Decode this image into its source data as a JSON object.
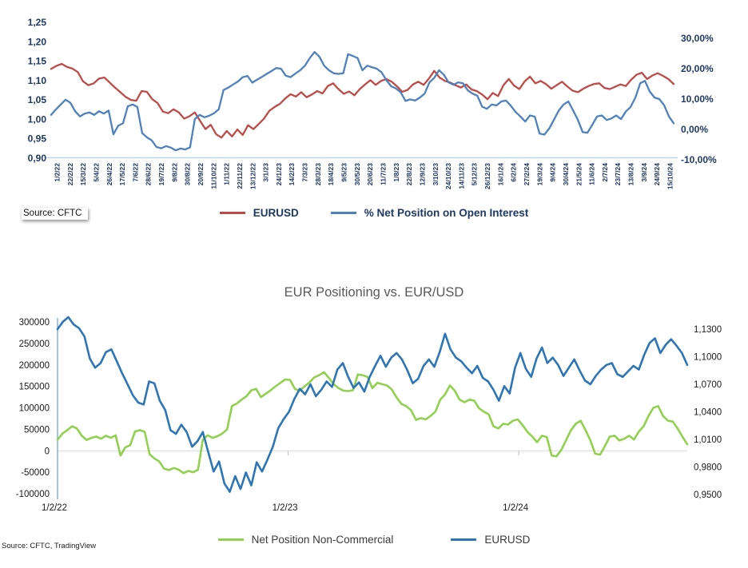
{
  "chart_data": [
    {
      "type": "line",
      "title": "",
      "source": "Source: CFTC",
      "left_axis": {
        "ticks": [
          "1,25",
          "1,20",
          "1,15",
          "1,10",
          "1,05",
          "1,00",
          "0,95",
          "0,90"
        ],
        "min": 0.9,
        "max": 1.25
      },
      "right_axis": {
        "ticks": [
          "30,00%",
          "20,00%",
          "10,00%",
          "0,00%",
          "-10,00%"
        ],
        "min": -10,
        "max": 30
      },
      "x_labels": [
        "1/2/22",
        "22/2/22",
        "15/3/22",
        "5/4/22",
        "26/4/22",
        "17/5/22",
        "7/6/22",
        "28/6/22",
        "19/7/22",
        "9/8/22",
        "30/8/22",
        "20/9/22",
        "11/10/22",
        "1/11/22",
        "22/11/22",
        "13/12/22",
        "3/1/23",
        "24/1/23",
        "14/2/23",
        "7/3/23",
        "28/3/23",
        "18/4/23",
        "9/5/23",
        "30/5/23",
        "20/6/23",
        "11/7/23",
        "1/8/23",
        "22/8/23",
        "12/9/23",
        "3/10/23",
        "24/10/23",
        "14/11/23",
        "5/12/23",
        "26/12/23",
        "16/1/24",
        "6/2/24",
        "27/2/24",
        "19/3/24",
        "9/4/24",
        "30/4/24",
        "21/5/24",
        "11/6/24",
        "2/7/24",
        "23/7/24",
        "13/8/24",
        "3/9/24",
        "24/9/24",
        "15/10/24"
      ],
      "series": [
        {
          "name": "EURUSD",
          "color": "#BE4B48",
          "axis": "left",
          "values": [
            1.13,
            1.138,
            1.143,
            1.135,
            1.131,
            1.122,
            1.098,
            1.088,
            1.093,
            1.105,
            1.108,
            1.095,
            1.082,
            1.07,
            1.058,
            1.05,
            1.048,
            1.073,
            1.071,
            1.052,
            1.042,
            1.02,
            1.016,
            1.026,
            1.018,
            1.002,
            1.008,
            1.018,
            0.996,
            0.975,
            0.986,
            0.962,
            0.953,
            0.97,
            0.956,
            0.974,
            0.96,
            0.985,
            0.975,
            0.988,
            1.002,
            1.022,
            1.032,
            1.04,
            1.054,
            1.065,
            1.059,
            1.07,
            1.057,
            1.064,
            1.073,
            1.067,
            1.086,
            1.093,
            1.078,
            1.066,
            1.072,
            1.062,
            1.078,
            1.09,
            1.101,
            1.089,
            1.099,
            1.104,
            1.097,
            1.085,
            1.071,
            1.076,
            1.09,
            1.097,
            1.089,
            1.105,
            1.125,
            1.108,
            1.099,
            1.095,
            1.088,
            1.082,
            1.09,
            1.077,
            1.073,
            1.064,
            1.052,
            1.068,
            1.06,
            1.088,
            1.104,
            1.087,
            1.078,
            1.098,
            1.11,
            1.093,
            1.099,
            1.091,
            1.079,
            1.088,
            1.097,
            1.085,
            1.074,
            1.07,
            1.079,
            1.086,
            1.091,
            1.093,
            1.081,
            1.078,
            1.084,
            1.09,
            1.086,
            1.102,
            1.115,
            1.12,
            1.104,
            1.113,
            1.119,
            1.112,
            1.104,
            1.091
          ]
        },
        {
          "name": "% Net Position on Open Interest",
          "color": "#4F81BD",
          "axis": "right",
          "values": [
            4.8,
            6.6,
            8.2,
            9.8,
            8.8,
            6.0,
            4.3,
            5.2,
            5.6,
            4.8,
            6.0,
            5.2,
            6.2,
            -1.6,
            1.2,
            2.0,
            7.6,
            8.2,
            7.4,
            -1.2,
            -2.6,
            -3.6,
            -5.8,
            -6.2,
            -5.5,
            -6.0,
            -6.9,
            -6.3,
            -6.6,
            -5.9,
            3.4,
            4.8,
            4.0,
            4.5,
            5.3,
            6.6,
            13.0,
            13.8,
            14.8,
            15.8,
            17.2,
            17.6,
            15.4,
            16.4,
            17.3,
            18.3,
            19.2,
            20.2,
            20.0,
            17.7,
            17.2,
            18.4,
            19.5,
            21.0,
            23.5,
            25.5,
            24.0,
            21.0,
            19.5,
            18.5,
            18.3,
            18.5,
            24.8,
            24.2,
            23.5,
            19.5,
            21.0,
            20.5,
            20.0,
            18.8,
            16.2,
            14.2,
            13.5,
            12.2,
            9.4,
            9.9,
            9.5,
            10.5,
            11.8,
            15.5,
            17.0,
            19.5,
            18.0,
            15.5,
            14.7,
            15.5,
            15.2,
            12.9,
            11.8,
            11.1,
            7.5,
            6.8,
            8.2,
            7.9,
            9.2,
            9.5,
            7.8,
            5.7,
            4.3,
            2.6,
            4.6,
            4.2,
            -1.4,
            -1.7,
            0.3,
            3.2,
            6.2,
            8.2,
            9.2,
            6.2,
            3.1,
            -0.9,
            -1.1,
            1.5,
            4.3,
            4.6,
            3.1,
            3.6,
            4.6,
            3.4,
            5.9,
            7.4,
            10.5,
            15.2,
            16.0,
            12.5,
            10.5,
            10.0,
            8.0,
            4.3,
            2.0
          ]
        }
      ]
    },
    {
      "type": "line",
      "title": "EUR Positioning vs. EUR/USD",
      "source": "Source: CFTC, TradingView",
      "left_axis": {
        "ticks": [
          "300000",
          "250000",
          "200000",
          "150000",
          "100000",
          "50000",
          "0",
          "-50000",
          "-100000"
        ],
        "min": -100000,
        "max": 300000
      },
      "right_axis": {
        "ticks": [
          "1,1300",
          "1,1000",
          "1,0700",
          "1,0400",
          "1,0100",
          "0,9800",
          "0,9500"
        ],
        "min": 0.95,
        "max": 1.13
      },
      "x_labels": [
        "1/2/22",
        "1/2/23",
        "1/2/24"
      ],
      "series": [
        {
          "name": "Net Position Non-Commercial",
          "color": "#92D050",
          "axis": "left",
          "values": [
            26000,
            40000,
            48000,
            57000,
            52000,
            35000,
            25000,
            30000,
            33000,
            28000,
            35000,
            30000,
            36000,
            -11000,
            8000,
            13000,
            45000,
            48000,
            44000,
            -8000,
            -18000,
            -25000,
            -42000,
            -45000,
            -40000,
            -44000,
            -52000,
            -47000,
            -50000,
            -44000,
            26000,
            36000,
            30000,
            34000,
            40000,
            50000,
            104000,
            110000,
            119000,
            127000,
            141000,
            144000,
            125000,
            133000,
            141000,
            150000,
            158000,
            166000,
            165000,
            144000,
            140000,
            150000,
            159000,
            171000,
            176000,
            183000,
            170000,
            155000,
            146000,
            140000,
            139000,
            141000,
            178000,
            176000,
            172000,
            146000,
            158000,
            155000,
            152000,
            143000,
            124000,
            109000,
            104000,
            94000,
            72000,
            76000,
            73000,
            81000,
            91000,
            119000,
            131000,
            152000,
            140000,
            119000,
            113000,
            119000,
            117000,
            99000,
            91000,
            85000,
            57000,
            52000,
            63000,
            61000,
            70000,
            73000,
            60000,
            44000,
            33000,
            20000,
            35000,
            32000,
            -11000,
            -13000,
            2000,
            25000,
            48000,
            63000,
            70000,
            48000,
            24000,
            -7000,
            -9000,
            11000,
            33000,
            35000,
            24000,
            28000,
            35000,
            26000,
            45000,
            57000,
            81000,
            100000,
            104000,
            81000,
            70000,
            68000,
            52000,
            33000,
            15000
          ]
        },
        {
          "name": "EURUSD",
          "color": "#2E75B6",
          "axis": "right",
          "values": [
            1.13,
            1.138,
            1.143,
            1.135,
            1.131,
            1.122,
            1.098,
            1.088,
            1.093,
            1.105,
            1.108,
            1.095,
            1.082,
            1.07,
            1.058,
            1.05,
            1.048,
            1.073,
            1.071,
            1.052,
            1.042,
            1.02,
            1.016,
            1.026,
            1.018,
            1.002,
            1.008,
            1.018,
            0.996,
            0.975,
            0.986,
            0.962,
            0.953,
            0.97,
            0.956,
            0.974,
            0.96,
            0.985,
            0.975,
            0.988,
            1.002,
            1.022,
            1.032,
            1.04,
            1.054,
            1.065,
            1.059,
            1.07,
            1.057,
            1.064,
            1.073,
            1.067,
            1.086,
            1.093,
            1.078,
            1.066,
            1.072,
            1.062,
            1.078,
            1.09,
            1.101,
            1.089,
            1.099,
            1.104,
            1.097,
            1.085,
            1.071,
            1.076,
            1.09,
            1.097,
            1.089,
            1.105,
            1.125,
            1.108,
            1.099,
            1.095,
            1.088,
            1.082,
            1.09,
            1.077,
            1.073,
            1.064,
            1.052,
            1.068,
            1.06,
            1.088,
            1.104,
            1.087,
            1.078,
            1.098,
            1.11,
            1.093,
            1.099,
            1.091,
            1.079,
            1.088,
            1.097,
            1.085,
            1.074,
            1.07,
            1.079,
            1.086,
            1.091,
            1.093,
            1.081,
            1.078,
            1.084,
            1.09,
            1.086,
            1.102,
            1.115,
            1.12,
            1.104,
            1.113,
            1.119,
            1.112,
            1.104,
            1.091
          ]
        }
      ]
    }
  ],
  "colors": {
    "axis_label_navy": "#1F3864",
    "top_axis_line": "#BDD7EE",
    "bottom_axis_line": "#6FA8DC",
    "zero_gridline": "#D9D9D9",
    "title_gray": "#595959"
  }
}
